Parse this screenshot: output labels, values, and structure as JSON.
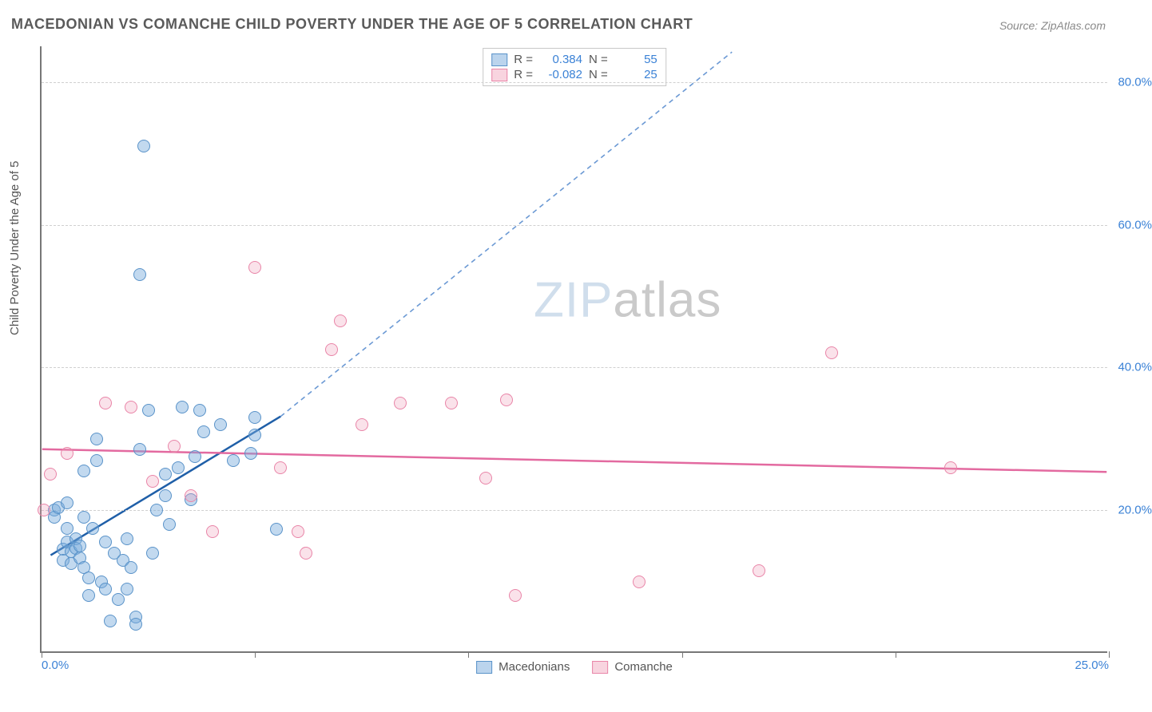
{
  "title": "MACEDONIAN VS COMANCHE CHILD POVERTY UNDER THE AGE OF 5 CORRELATION CHART",
  "source": "Source: ZipAtlas.com",
  "yaxis_title": "Child Poverty Under the Age of 5",
  "watermark_bold": "ZIP",
  "watermark_light": "atlas",
  "chart": {
    "type": "scatter",
    "xlim": [
      0,
      25
    ],
    "ylim": [
      0,
      85
    ],
    "x_ticks": [
      0,
      5,
      10,
      15,
      20,
      25
    ],
    "x_tick_labels": [
      "0.0%",
      "",
      "",
      "",
      "",
      "25.0%"
    ],
    "y_ticks": [
      20,
      40,
      60,
      80
    ],
    "y_tick_labels": [
      "20.0%",
      "40.0%",
      "60.0%",
      "80.0%"
    ],
    "grid_color": "#d0d0d0",
    "axis_color": "#777777",
    "background_color": "#ffffff",
    "tick_label_color": "#3b82d6",
    "point_radius": 8,
    "series": [
      {
        "name": "Macedonians",
        "color_fill": "rgba(120,170,220,0.45)",
        "color_stroke": "#5a93c9",
        "R": 0.384,
        "N": 55,
        "trend": {
          "x1": 0.2,
          "y1": 13.5,
          "x2": 5.6,
          "y2": 33,
          "extend_x2": 16.2,
          "extend_y2": 84.2,
          "color_solid": "#1f5fa8",
          "color_dash": "#6b99d4",
          "width": 2.5
        },
        "points": [
          [
            0.3,
            20
          ],
          [
            0.3,
            19
          ],
          [
            0.4,
            20.3
          ],
          [
            0.5,
            14.5
          ],
          [
            0.5,
            13
          ],
          [
            0.6,
            15.5
          ],
          [
            0.6,
            17.5
          ],
          [
            0.7,
            14.2
          ],
          [
            0.7,
            12.5
          ],
          [
            0.8,
            16
          ],
          [
            0.8,
            14.7
          ],
          [
            0.9,
            13.3
          ],
          [
            0.9,
            15
          ],
          [
            1.0,
            12
          ],
          [
            1.0,
            19
          ],
          [
            1.1,
            10.5
          ],
          [
            1.1,
            8
          ],
          [
            1.2,
            17.5
          ],
          [
            1.3,
            27
          ],
          [
            1.3,
            30
          ],
          [
            1.4,
            10
          ],
          [
            1.5,
            15.5
          ],
          [
            1.5,
            9
          ],
          [
            1.6,
            4.5
          ],
          [
            1.7,
            14
          ],
          [
            1.8,
            7.5
          ],
          [
            1.9,
            13
          ],
          [
            2.0,
            16
          ],
          [
            2.0,
            9
          ],
          [
            2.2,
            5
          ],
          [
            2.2,
            4
          ],
          [
            2.3,
            28.5
          ],
          [
            2.3,
            53
          ],
          [
            2.4,
            71
          ],
          [
            2.5,
            34
          ],
          [
            2.6,
            14
          ],
          [
            2.7,
            20
          ],
          [
            2.9,
            22
          ],
          [
            2.9,
            25
          ],
          [
            3.0,
            18
          ],
          [
            3.2,
            26
          ],
          [
            3.3,
            34.5
          ],
          [
            3.6,
            27.5
          ],
          [
            3.7,
            34
          ],
          [
            3.8,
            31
          ],
          [
            4.2,
            32
          ],
          [
            4.5,
            27
          ],
          [
            4.9,
            28
          ],
          [
            5.0,
            33
          ],
          [
            5.0,
            30.5
          ],
          [
            5.5,
            17.3
          ],
          [
            3.5,
            21.5
          ],
          [
            1.0,
            25.5
          ],
          [
            0.6,
            21
          ],
          [
            2.1,
            12
          ]
        ]
      },
      {
        "name": "Comanche",
        "color_fill": "rgba(240,160,185,0.30)",
        "color_stroke": "#e985a8",
        "R": -0.082,
        "N": 25,
        "trend": {
          "x1": 0,
          "y1": 28.4,
          "x2": 25,
          "y2": 25.2,
          "color_solid": "#e36aa0",
          "width": 2.5
        },
        "points": [
          [
            0.05,
            20
          ],
          [
            0.2,
            25
          ],
          [
            0.6,
            28
          ],
          [
            1.5,
            35
          ],
          [
            2.1,
            34.5
          ],
          [
            2.6,
            24
          ],
          [
            3.1,
            29
          ],
          [
            3.5,
            22
          ],
          [
            4.0,
            17
          ],
          [
            5.0,
            54
          ],
          [
            5.6,
            26
          ],
          [
            6.0,
            17
          ],
          [
            6.2,
            14
          ],
          [
            6.8,
            42.5
          ],
          [
            7.0,
            46.5
          ],
          [
            7.5,
            32
          ],
          [
            8.4,
            35
          ],
          [
            9.6,
            35
          ],
          [
            10.4,
            24.5
          ],
          [
            10.9,
            35.5
          ],
          [
            11.1,
            8
          ],
          [
            14.0,
            10
          ],
          [
            16.8,
            11.5
          ],
          [
            18.5,
            42
          ],
          [
            21.3,
            26
          ]
        ]
      }
    ]
  },
  "legend_top": {
    "rows": [
      {
        "swatch": "blue",
        "r_label": "R =",
        "r_value": "0.384",
        "n_label": "N =",
        "n_value": "55"
      },
      {
        "swatch": "pink",
        "r_label": "R =",
        "r_value": "-0.082",
        "n_label": "N =",
        "n_value": "25"
      }
    ]
  },
  "legend_bottom": [
    {
      "swatch": "blue",
      "label": "Macedonians"
    },
    {
      "swatch": "pink",
      "label": "Comanche"
    }
  ]
}
